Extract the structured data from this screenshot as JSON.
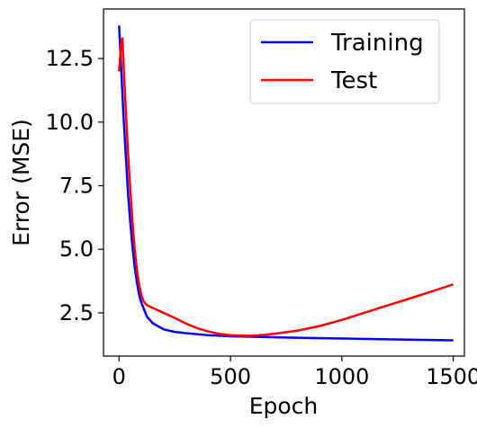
{
  "chart_data": {
    "type": "line",
    "title": "",
    "xlabel": "Epoch",
    "ylabel": "Error (MSE)",
    "xlim": [
      -70,
      1550
    ],
    "ylim": [
      0.8,
      14.45
    ],
    "xticks": [
      0,
      500,
      1000,
      1500
    ],
    "xtick_labels": [
      "0",
      "500",
      "1000",
      "1500"
    ],
    "yticks": [
      2.5,
      5.0,
      7.5,
      10.0,
      12.5
    ],
    "ytick_labels": [
      "2.5",
      "5.0",
      "7.5",
      "10.0",
      "12.5"
    ],
    "grid": false,
    "legend_position": "top-right",
    "series": [
      {
        "name": "Training",
        "color": "#0000ff",
        "x": [
          0,
          10,
          20,
          30,
          40,
          50,
          60,
          70,
          80,
          90,
          100,
          125,
          150,
          200,
          250,
          300,
          400,
          500,
          600,
          700,
          800,
          1000,
          1200,
          1400,
          1500
        ],
        "y": [
          13.8,
          12.0,
          10.2,
          8.7,
          7.2,
          6.1,
          5.1,
          4.3,
          3.7,
          3.2,
          2.9,
          2.35,
          2.1,
          1.85,
          1.75,
          1.7,
          1.62,
          1.58,
          1.56,
          1.54,
          1.52,
          1.49,
          1.46,
          1.43,
          1.42
        ]
      },
      {
        "name": "Test",
        "color": "#ff0000",
        "x": [
          0,
          5,
          10,
          15,
          20,
          30,
          40,
          50,
          60,
          70,
          80,
          90,
          100,
          110,
          125,
          150,
          200,
          250,
          300,
          350,
          400,
          450,
          500,
          550,
          600,
          650,
          700,
          800,
          900,
          1000,
          1100,
          1200,
          1300,
          1400,
          1500
        ],
        "y": [
          12.0,
          12.6,
          13.2,
          13.3,
          12.3,
          10.5,
          8.8,
          7.4,
          6.1,
          5.0,
          4.2,
          3.6,
          3.2,
          2.95,
          2.8,
          2.7,
          2.5,
          2.3,
          2.08,
          1.9,
          1.77,
          1.67,
          1.62,
          1.6,
          1.6,
          1.63,
          1.68,
          1.8,
          1.98,
          2.22,
          2.5,
          2.78,
          3.05,
          3.33,
          3.62
        ]
      }
    ]
  }
}
